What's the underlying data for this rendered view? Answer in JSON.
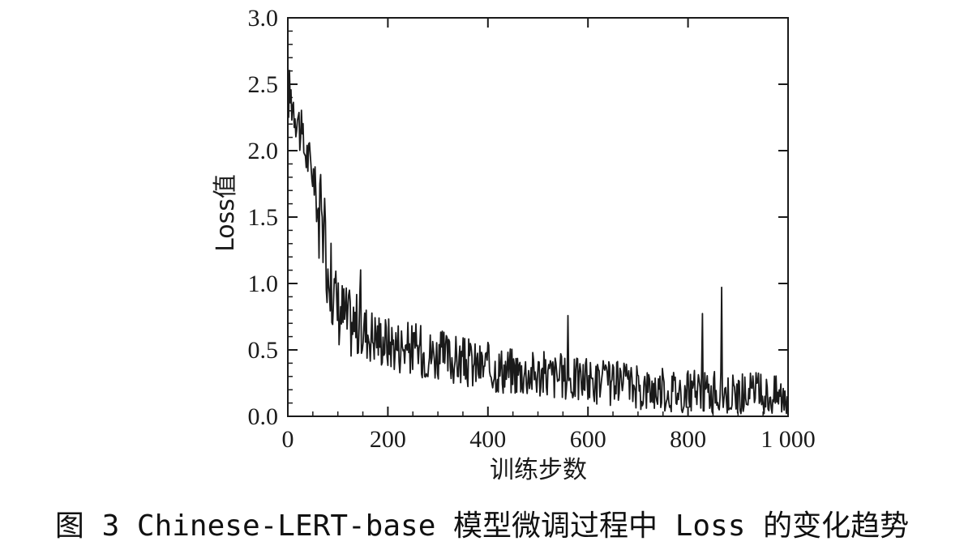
{
  "caption": "图 3  Chinese-LERT-base 模型微调过程中 Loss 的变化趋势",
  "chart_data": {
    "type": "line",
    "xlabel": "训练步数",
    "ylabel": "Loss值",
    "xlim": [
      0,
      1000
    ],
    "ylim": [
      0,
      3.0
    ],
    "x_ticks": [
      0,
      200,
      400,
      600,
      800,
      1000
    ],
    "x_tick_labels": [
      "0",
      "200",
      "400",
      "600",
      "800",
      "1 000"
    ],
    "y_ticks": [
      0,
      0.5,
      1.0,
      1.5,
      2.0,
      2.5,
      3.0
    ],
    "y_tick_labels": [
      "0.0",
      "0.5",
      "1.0",
      "1.5",
      "2.0",
      "2.5",
      "3.0"
    ],
    "grid": false,
    "line_color": "#1a1a1a",
    "series": [
      {
        "x": [
          0,
          10,
          20,
          30,
          40,
          50,
          60,
          70,
          80,
          90,
          100,
          110,
          120,
          130,
          140,
          150,
          160,
          170,
          180,
          190,
          200,
          210,
          220,
          230,
          240,
          250,
          260,
          270,
          280,
          290,
          300,
          320,
          340,
          360,
          380,
          400,
          420,
          440,
          460,
          480,
          500,
          520,
          540,
          560,
          580,
          600,
          620,
          640,
          660,
          680,
          700,
          720,
          740,
          760,
          780,
          800,
          820,
          840,
          860,
          880,
          900,
          920,
          940,
          960,
          980,
          1000
        ],
        "values": [
          2.45,
          2.38,
          2.25,
          2.05,
          1.95,
          1.85,
          1.55,
          1.4,
          1.15,
          0.95,
          0.82,
          0.78,
          0.72,
          0.7,
          0.68,
          0.66,
          0.64,
          0.62,
          0.6,
          0.58,
          0.56,
          0.55,
          0.54,
          0.53,
          0.52,
          0.51,
          0.5,
          0.49,
          0.48,
          0.47,
          0.46,
          0.44,
          0.42,
          0.4,
          0.38,
          0.37,
          0.36,
          0.35,
          0.34,
          0.33,
          0.32,
          0.31,
          0.3,
          0.29,
          0.28,
          0.27,
          0.26,
          0.25,
          0.24,
          0.23,
          0.22,
          0.21,
          0.21,
          0.2,
          0.2,
          0.19,
          0.19,
          0.18,
          0.18,
          0.18,
          0.17,
          0.17,
          0.17,
          0.16,
          0.16,
          0.16
        ]
      }
    ]
  }
}
